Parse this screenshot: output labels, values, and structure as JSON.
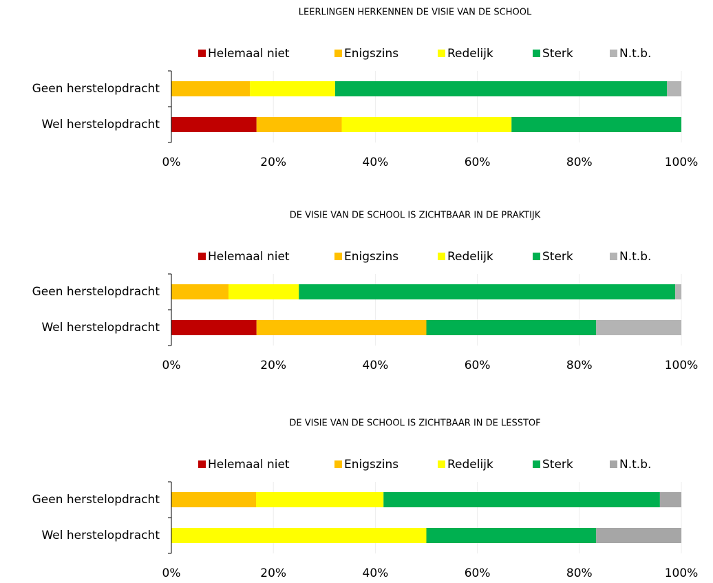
{
  "chart_data": [
    {
      "type": "bar",
      "orientation": "horizontal",
      "stacked": true,
      "title": "LEERLINGEN  HERKENNEN  DE  VISIE VAN DE SCHOOL",
      "categories": [
        "Geen herstelopdracht",
        "Wel herstelopdracht"
      ],
      "series": [
        {
          "name": "Helemaal niet",
          "color": "#c00000",
          "values": [
            0,
            16.7
          ]
        },
        {
          "name": "Enigszins",
          "color": "#ffc000",
          "values": [
            15.4,
            16.7
          ]
        },
        {
          "name": "Redelijk",
          "color": "#ffff00",
          "values": [
            16.7,
            33.3
          ]
        },
        {
          "name": "Sterk",
          "color": "#00b050",
          "values": [
            65.1,
            33.3
          ]
        },
        {
          "name": "N.t.b.",
          "color": "#b4b4b4",
          "values": [
            2.8,
            0
          ]
        }
      ],
      "xlim": [
        0,
        100
      ],
      "xticks": [
        {
          "value": 0,
          "label": "0%"
        },
        {
          "value": 20,
          "label": "20%"
        },
        {
          "value": 40,
          "label": "40%"
        },
        {
          "value": 60,
          "label": "60%"
        },
        {
          "value": 80,
          "label": "80%"
        },
        {
          "value": 100,
          "label": "100%"
        }
      ],
      "legend": "top",
      "grid": true
    },
    {
      "type": "bar",
      "orientation": "horizontal",
      "stacked": true,
      "title": "DE  VISIE  VAN  DE  SCHOOL  IS  ZICHTBAAR  IN  DE  PRAKTIJK",
      "categories": [
        "Geen herstelopdracht",
        "Wel herstelopdracht"
      ],
      "series": [
        {
          "name": "Helemaal niet",
          "color": "#c00000",
          "values": [
            0,
            16.7
          ]
        },
        {
          "name": "Enigszins",
          "color": "#ffc000",
          "values": [
            11.2,
            33.3
          ]
        },
        {
          "name": "Redelijk",
          "color": "#ffff00",
          "values": [
            13.8,
            0
          ]
        },
        {
          "name": "Sterk",
          "color": "#00b050",
          "values": [
            73.8,
            33.3
          ]
        },
        {
          "name": "N.t.b.",
          "color": "#b4b4b4",
          "values": [
            1.2,
            16.7
          ]
        }
      ],
      "xlim": [
        0,
        100
      ],
      "xticks": [
        {
          "value": 0,
          "label": "0%"
        },
        {
          "value": 20,
          "label": "20%"
        },
        {
          "value": 40,
          "label": "40%"
        },
        {
          "value": 60,
          "label": "60%"
        },
        {
          "value": 80,
          "label": "80%"
        },
        {
          "value": 100,
          "label": "100%"
        }
      ],
      "legend": "top",
      "grid": true
    },
    {
      "type": "bar",
      "orientation": "horizontal",
      "stacked": true,
      "title": "DE  VISIE  VAN  DE  SCHOOL  IS  ZICHTBAAR  IN  DE  LESSTOF",
      "categories": [
        "Geen herstelopdracht",
        "Wel herstelopdracht"
      ],
      "series": [
        {
          "name": "Helemaal niet",
          "color": "#c00000",
          "values": [
            0,
            0
          ]
        },
        {
          "name": "Enigszins",
          "color": "#ffc000",
          "values": [
            16.6,
            0
          ]
        },
        {
          "name": "Redelijk",
          "color": "#ffff00",
          "values": [
            25.0,
            50.0
          ]
        },
        {
          "name": "Sterk",
          "color": "#00b050",
          "values": [
            54.2,
            33.3
          ]
        },
        {
          "name": "N.t.b.",
          "color": "#a6a6a6",
          "values": [
            4.2,
            16.7
          ]
        }
      ],
      "xlim": [
        0,
        100
      ],
      "xticks": [
        {
          "value": 0,
          "label": "0%"
        },
        {
          "value": 20,
          "label": "20%"
        },
        {
          "value": 40,
          "label": "40%"
        },
        {
          "value": 60,
          "label": "60%"
        },
        {
          "value": 80,
          "label": "80%"
        },
        {
          "value": 100,
          "label": "100%"
        }
      ],
      "legend": "top",
      "grid": true
    }
  ]
}
